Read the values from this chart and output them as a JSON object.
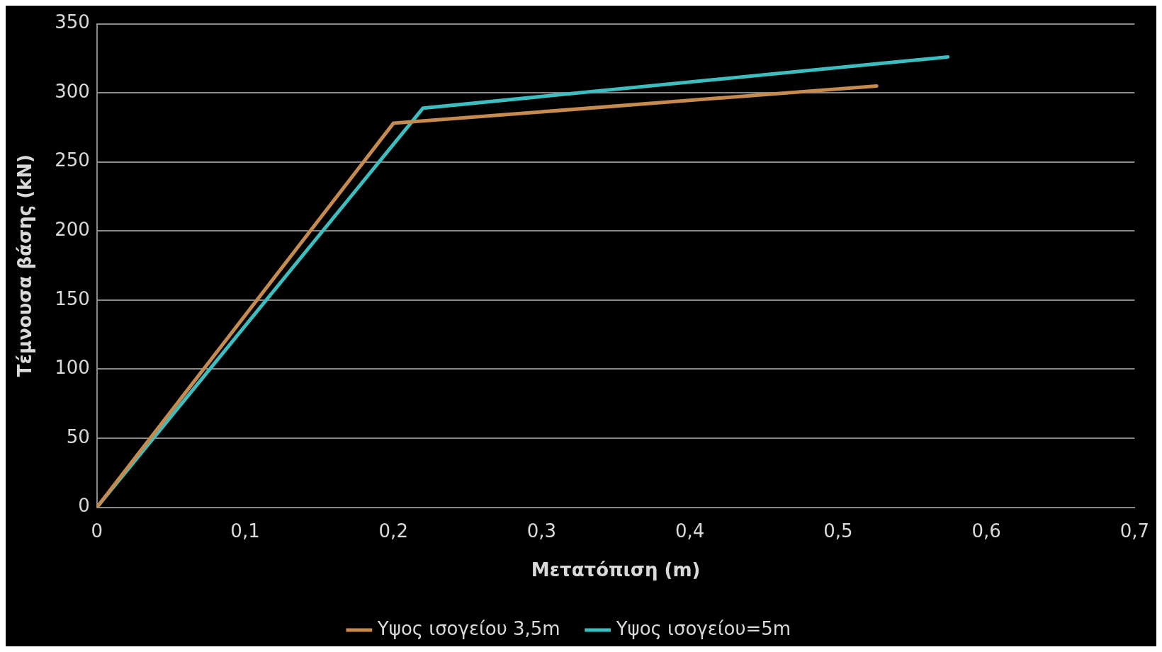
{
  "chart_data": {
    "type": "line",
    "xlabel": "Μετατόπιση (m)",
    "ylabel": "Τέμνουσα βάσης (kN)",
    "xlim": [
      0,
      0.7
    ],
    "xticks": [
      0,
      {
        "value": 0.1,
        "label": "0,1"
      },
      {
        "value": 0.2,
        "label": "0,2"
      },
      {
        "value": 0.3,
        "label": "0,3"
      },
      {
        "value": 0.4,
        "label": "0,4"
      },
      {
        "value": 0.5,
        "label": "0,5"
      },
      {
        "value": 0.6,
        "label": "0,6"
      },
      {
        "value": 0.7,
        "label": "0,7"
      }
    ],
    "ylim": [
      0,
      350
    ],
    "yticks": [
      0,
      50,
      100,
      150,
      200,
      250,
      300,
      350
    ],
    "grid": "y",
    "legend": "bottom",
    "marker": "none",
    "line_style": "solid",
    "series": [
      {
        "name": "Υψος ισογείου 3,5m",
        "color": "#c58a4e",
        "x": [
          0,
          0.2,
          0.526
        ],
        "values": [
          0,
          278,
          305
        ]
      },
      {
        "name": "Υψος ισογείου=5m",
        "color": "#3cbdbf",
        "x": [
          0,
          0.22,
          0.574
        ],
        "values": [
          0,
          289,
          326
        ]
      }
    ]
  }
}
